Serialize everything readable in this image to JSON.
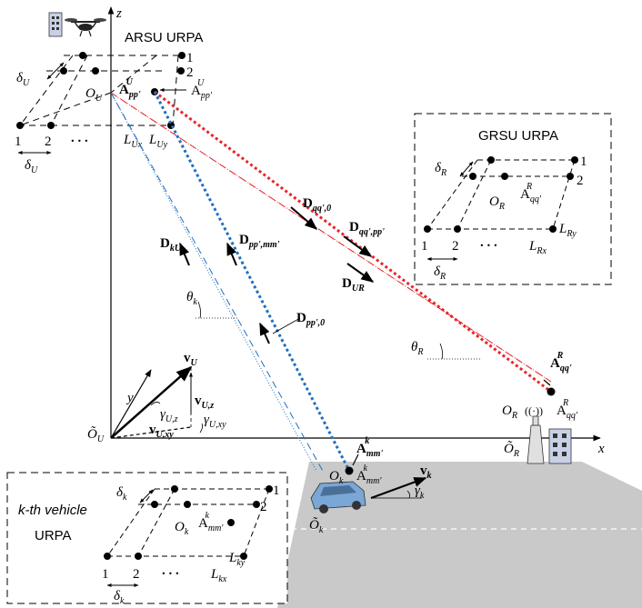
{
  "axes": {
    "x": "x",
    "y": "y",
    "z": "z"
  },
  "titles": {
    "arsu": "ARSU URPA",
    "grsu": "GRSU URPA",
    "vehicle_line1": "k-th vehicle",
    "vehicle_line2": "URPA"
  },
  "arsu": {
    "index_1": "1",
    "index_2": "2",
    "row_1": "1",
    "row_2": "2",
    "dots": ". . .",
    "delta_top": "δ",
    "delta_top_sub": "U",
    "delta_bottom": "δ",
    "delta_bottom_sub": "U",
    "origin": "O",
    "origin_sub": "U",
    "L_ux": "L",
    "L_ux_sub": "Ux",
    "L_uy": "L",
    "L_uy_sub": "Uy",
    "A_pp": "A",
    "A_pp_sub": "pp'",
    "A_pp_sup": "U",
    "A_ppp": "A",
    "A_ppp_sub": "pp'",
    "A_ppp_sup": "U"
  },
  "grsu": {
    "index_1": "1",
    "index_2": "2",
    "row_1": "1",
    "row_2": "2",
    "dots": ". . .",
    "delta_top": "δ",
    "delta_top_sub": "R",
    "delta_bottom": "δ",
    "delta_bottom_sub": "R",
    "origin": "O",
    "origin_sub": "R",
    "A_qq": "A",
    "A_qq_sub": "qq'",
    "A_qq_sup": "R",
    "L_rx": "L",
    "L_rx_sub": "Rx",
    "L_ry": "L",
    "L_ry_sub": "Ry"
  },
  "vehicle": {
    "index_1": "1",
    "index_2": "2",
    "row_1": "1",
    "row_2": "2",
    "dots": ". . .",
    "delta_top": "δ",
    "delta_top_sub": "k",
    "delta_bottom": "δ",
    "delta_bottom_sub": "k",
    "origin": "O",
    "origin_sub": "k",
    "A_mm": "A",
    "A_mm_sub": "mm'",
    "A_mm_sup": "k",
    "L_kx": "L",
    "L_kx_sub": "kx",
    "L_ky": "L",
    "L_ky_sub": "ky"
  },
  "main": {
    "D_qq0": "D",
    "D_qq0_sub": "qq',0",
    "D_qqpp": "D",
    "D_qqpp_sub": "qq',pp'",
    "D_UR": "D",
    "D_UR_sub": "UR",
    "D_kU": "D",
    "D_kU_sub": "kU",
    "D_ppmm": "D",
    "D_ppmm_sub": "pp',mm'",
    "D_pp0": "D",
    "D_pp0_sub": "pp',0",
    "theta_k": "θ",
    "theta_k_sub": "k",
    "theta_R": "θ",
    "theta_R_sub": "R",
    "A_qq_r": "A",
    "A_qq_r_sub": "qq'",
    "A_qq_r_sup": "R",
    "A_qq_r2": "A",
    "A_qq_r2_sub": "qq'",
    "A_qq_r2_sup": "R",
    "O_R": "O",
    "O_R_sub": "R",
    "O_R_tilde": "Õ",
    "O_R_tilde_sub": "R",
    "A_mm_k": "A",
    "A_mm_k_sub": "mm'",
    "A_mm_k_sup": "k",
    "A_mm_k2": "A",
    "A_mm_k2_sub": "mm'",
    "A_mm_k2_sup": "k",
    "O_k": "O",
    "O_k_sub": "k",
    "O_k_tilde": "Õ",
    "O_k_tilde_sub": "k",
    "v_k": "v",
    "v_k_sub": "k",
    "gamma_k": "γ",
    "gamma_k_sub": "k",
    "O_U_tilde": "Õ",
    "O_U_tilde_sub": "U",
    "v_U": "v",
    "v_U_sub": "U",
    "v_Uz": "v",
    "v_Uz_sub": "U,z",
    "v_Uxy": "v",
    "v_Uxy_sub": "U,xy",
    "gamma_Uz": "γ",
    "gamma_Uz_sub": "U,z",
    "gamma_Uxy": "γ",
    "gamma_Uxy_sub": "U,xy"
  },
  "colors": {
    "red": "#e8252a",
    "blue": "#1f6fc0",
    "road": "#c9c9c9",
    "car": "#7aa7d6"
  },
  "icons": [
    "building-icon",
    "drone-icon",
    "antenna-tower-icon",
    "building-icon",
    "car-icon"
  ]
}
